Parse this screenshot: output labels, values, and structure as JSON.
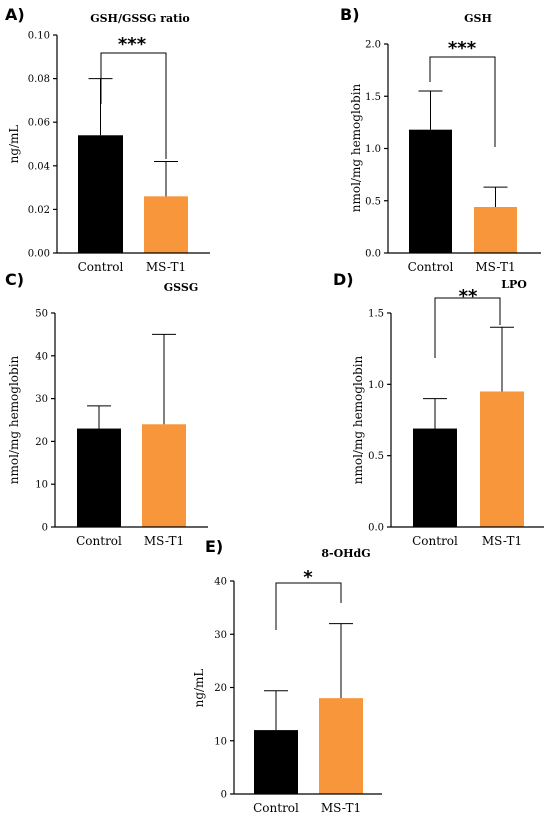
{
  "colors": {
    "control": "#000000",
    "ms_t1": "#F7963A",
    "axis": "#000000"
  },
  "chart_data": [
    {
      "panel": "A)",
      "type": "bar",
      "title": "GSH/GSSG ratio",
      "ylabel": "ng/mL",
      "categories": [
        "Control",
        "MS-T1"
      ],
      "values": [
        0.054,
        0.026
      ],
      "errors": [
        0.026,
        0.016
      ],
      "ylim": [
        0,
        0.1
      ],
      "yticks": [
        0,
        0.02,
        0.04,
        0.06,
        0.08,
        0.1
      ],
      "ytick_labels": [
        "0.00",
        "0.02",
        "0.04",
        "0.06",
        "0.08",
        "0.10"
      ],
      "significance": "***"
    },
    {
      "panel": "B)",
      "type": "bar",
      "title": "GSH",
      "ylabel": "nmol/mg hemoglobin",
      "categories": [
        "Control",
        "MS-T1"
      ],
      "values": [
        1.18,
        0.44
      ],
      "errors": [
        0.37,
        0.19
      ],
      "ylim": [
        0,
        2.0
      ],
      "yticks": [
        0,
        0.5,
        1.0,
        1.5,
        2.0
      ],
      "ytick_labels": [
        "0.0",
        "0.5",
        "1.0",
        "1.5",
        "2.0"
      ],
      "significance": "***"
    },
    {
      "panel": "C)",
      "type": "bar",
      "title": "GSSG",
      "ylabel": "nmol/mg hemoglobin",
      "categories": [
        "Control",
        "MS-T1"
      ],
      "values": [
        23,
        24
      ],
      "errors": [
        5.3,
        21
      ],
      "ylim": [
        0,
        50
      ],
      "yticks": [
        0,
        10,
        20,
        30,
        40,
        50
      ],
      "ytick_labels": [
        "0",
        "10",
        "20",
        "30",
        "40",
        "50"
      ],
      "significance": ""
    },
    {
      "panel": "D)",
      "type": "bar",
      "title": "LPO",
      "ylabel": "nmol/mg hemoglobin",
      "categories": [
        "Control",
        "MS-T1"
      ],
      "values": [
        0.69,
        0.95
      ],
      "errors": [
        0.21,
        0.45
      ],
      "ylim": [
        0,
        1.5
      ],
      "yticks": [
        0,
        0.5,
        1.0,
        1.5
      ],
      "ytick_labels": [
        "0.0",
        "0.5",
        "1.0",
        "1.5"
      ],
      "significance": "**"
    },
    {
      "panel": "E)",
      "type": "bar",
      "title": "8-OHdG",
      "ylabel": "ng/mL",
      "categories": [
        "Control",
        "MS-T1"
      ],
      "values": [
        12,
        18
      ],
      "errors": [
        7.4,
        14
      ],
      "ylim": [
        0,
        40
      ],
      "yticks": [
        0,
        10,
        20,
        30,
        40
      ],
      "ytick_labels": [
        "0",
        "10",
        "20",
        "30",
        "40"
      ],
      "significance": "*"
    }
  ]
}
